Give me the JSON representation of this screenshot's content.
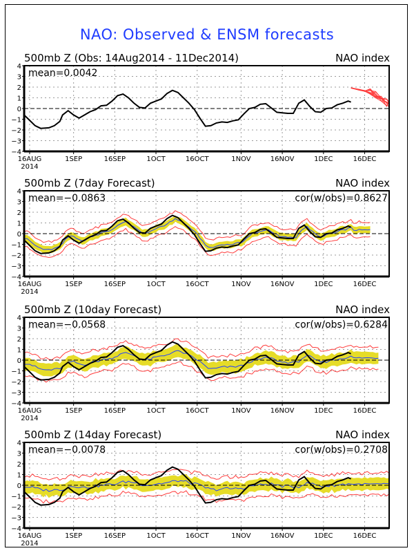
{
  "title": "NAO: Observed & ENSM forecasts",
  "chart_data": [
    {
      "type": "line",
      "title": "500mb Z (Obs: 14Aug2014 - 11Dec2014)",
      "right_title": "NAO index",
      "mean_label": "mean=0.0042",
      "ylim": [
        -4,
        4
      ],
      "yticks": [
        "4",
        "3",
        "2",
        "1",
        "0",
        "-1",
        "-2",
        "-3",
        "-4"
      ],
      "xticks": [
        "16AUG",
        "1SEP",
        "16SEP",
        "1OCT",
        "16OCT",
        "1NOV",
        "16NOV",
        "1DEC",
        "16DEC"
      ],
      "xtick_year": "2014",
      "grid": true,
      "series": [
        {
          "name": "observed",
          "color": "#000000",
          "x_days": [
            0,
            2,
            4,
            6,
            9,
            11,
            13,
            14,
            16,
            18,
            20,
            22,
            24,
            26,
            28,
            30,
            32,
            34,
            36,
            38,
            40,
            42,
            44,
            46,
            48,
            50,
            52,
            54,
            56,
            58,
            60,
            62,
            64,
            66,
            68,
            70,
            72,
            74,
            76,
            78,
            80,
            82,
            84,
            86,
            88,
            90,
            92,
            94,
            96,
            98,
            100,
            102,
            104,
            106,
            108,
            110,
            112,
            114,
            116,
            118,
            119
          ],
          "values": [
            -0.6,
            -1.1,
            -1.6,
            -1.85,
            -1.8,
            -1.6,
            -1.2,
            -0.6,
            -0.2,
            -0.6,
            -0.9,
            -0.6,
            -0.3,
            -0.1,
            0.25,
            0.3,
            0.7,
            1.2,
            1.35,
            1.0,
            0.5,
            0.1,
            0.05,
            0.5,
            0.7,
            0.9,
            1.4,
            1.7,
            1.5,
            1.0,
            0.5,
            -0.1,
            -0.9,
            -1.65,
            -1.6,
            -1.35,
            -1.25,
            -1.3,
            -1.15,
            -1.05,
            -0.5,
            0.0,
            0.1,
            0.4,
            0.45,
            0.05,
            -0.35,
            -0.4,
            -0.45,
            -0.45,
            0.5,
            0.8,
            0.2,
            -0.3,
            -0.35,
            0.0,
            0.05,
            0.35,
            0.5,
            0.7,
            0.6
          ]
        },
        {
          "name": "ensemble-forecast",
          "color": "#ff3c3c",
          "x_days": [
            119,
            122,
            124,
            126,
            128,
            130,
            132,
            133
          ],
          "values_low": [
            1.9,
            1.7,
            1.6,
            1.3,
            0.9,
            0.5,
            0.1,
            0.0
          ],
          "values_high": [
            1.95,
            1.8,
            1.7,
            1.9,
            1.7,
            1.2,
            1.0,
            0.9
          ]
        }
      ]
    },
    {
      "type": "line",
      "title": "500mb Z (7day Forecast)",
      "right_title": "NAO index",
      "mean_label": "mean=-0.0863",
      "cor_label": "cor(w/obs)=0.8627",
      "ylim": [
        -4,
        4
      ],
      "series": [
        {
          "name": "ensemble-mean",
          "color": "#2040ff",
          "lead_days": 7
        },
        {
          "name": "spread-band",
          "color": "#e6dc28"
        },
        {
          "name": "range-lines",
          "color": "#ff3c3c"
        },
        {
          "name": "observed",
          "color": "#000000"
        }
      ],
      "lead_days": 7,
      "band": 0.35,
      "range": 0.75,
      "shrink": 0.8,
      "end_day": 126
    },
    {
      "type": "line",
      "title": "500mb Z (10day Forecast)",
      "right_title": "NAO index",
      "mean_label": "mean=-0.0568",
      "cor_label": "cor(w/obs)=0.6284",
      "ylim": [
        -4,
        4
      ],
      "series": [
        {
          "name": "ensemble-mean",
          "color": "#2040ff"
        },
        {
          "name": "spread-band",
          "color": "#e6dc28"
        },
        {
          "name": "range-lines",
          "color": "#ff3c3c"
        },
        {
          "name": "observed",
          "color": "#000000"
        }
      ],
      "lead_days": 10,
      "band": 0.6,
      "range": 1.1,
      "shrink": 0.5,
      "end_day": 129
    },
    {
      "type": "line",
      "title": "500mb Z (14day Forecast)",
      "right_title": "NAO index",
      "mean_label": "mean=-0.0078",
      "cor_label": "cor(w/obs)=0.2708",
      "ylim": [
        -4,
        4
      ],
      "series": [
        {
          "name": "ensemble-mean",
          "color": "#2040ff"
        },
        {
          "name": "spread-band",
          "color": "#e6dc28"
        },
        {
          "name": "range-lines",
          "color": "#ff3c3c"
        },
        {
          "name": "observed",
          "color": "#000000"
        }
      ],
      "lead_days": 14,
      "band": 0.6,
      "range": 1.1,
      "shrink": 0.25,
      "end_day": 133
    }
  ]
}
